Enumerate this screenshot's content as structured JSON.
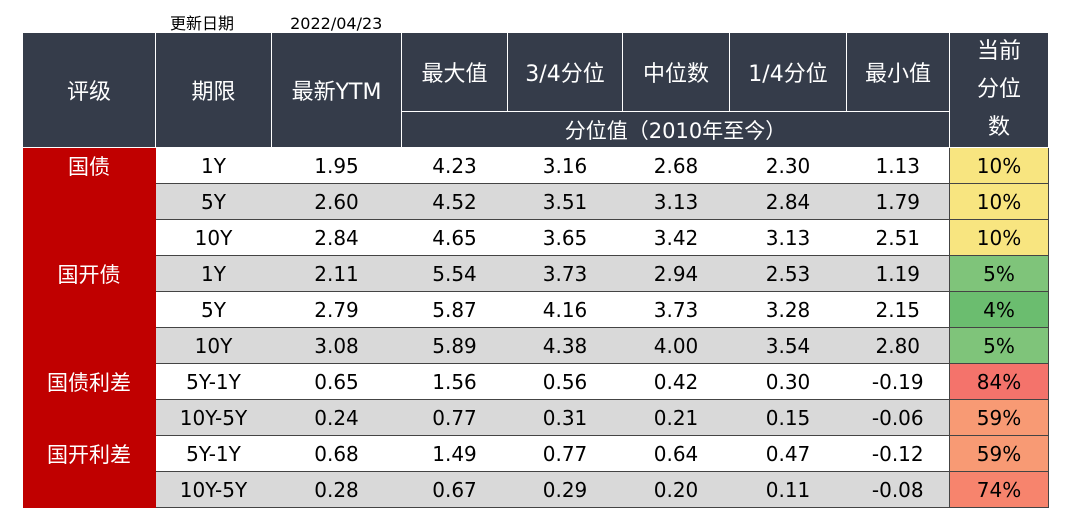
{
  "update": {
    "label": "更新日期",
    "date": "2022/04/23"
  },
  "headers": {
    "grade": "评级",
    "term": "期限",
    "ytm": "最新YTM",
    "max": "最大值",
    "q3": "3/4分位",
    "median": "中位数",
    "q1": "1/4分位",
    "min": "最小值",
    "pct": "当前分位数",
    "subheader": "分位值（2010年至今）"
  },
  "rows": [
    {
      "grade": "国债",
      "term": "1Y",
      "ytm": "1.95",
      "max": "4.23",
      "q3": "3.16",
      "median": "2.68",
      "q1": "2.30",
      "min": "1.13",
      "pct": "10%"
    },
    {
      "grade": "",
      "term": "5Y",
      "ytm": "2.60",
      "max": "4.52",
      "q3": "3.51",
      "median": "3.13",
      "q1": "2.84",
      "min": "1.79",
      "pct": "10%"
    },
    {
      "grade": "",
      "term": "10Y",
      "ytm": "2.84",
      "max": "4.65",
      "q3": "3.65",
      "median": "3.42",
      "q1": "3.13",
      "min": "2.51",
      "pct": "10%"
    },
    {
      "grade": "国开债",
      "term": "1Y",
      "ytm": "2.11",
      "max": "5.54",
      "q3": "3.73",
      "median": "2.94",
      "q1": "2.53",
      "min": "1.19",
      "pct": "5%"
    },
    {
      "grade": "",
      "term": "5Y",
      "ytm": "2.79",
      "max": "5.87",
      "q3": "4.16",
      "median": "3.73",
      "q1": "3.28",
      "min": "2.15",
      "pct": "4%"
    },
    {
      "grade": "",
      "term": "10Y",
      "ytm": "3.08",
      "max": "5.89",
      "q3": "4.38",
      "median": "4.00",
      "q1": "3.54",
      "min": "2.80",
      "pct": "5%"
    },
    {
      "grade": "国债利差",
      "term": "5Y-1Y",
      "ytm": "0.65",
      "max": "1.56",
      "q3": "0.56",
      "median": "0.42",
      "q1": "0.30",
      "min": "-0.19",
      "pct": "84%"
    },
    {
      "grade": "",
      "term": "10Y-5Y",
      "ytm": "0.24",
      "max": "0.77",
      "q3": "0.31",
      "median": "0.21",
      "q1": "0.15",
      "min": "-0.06",
      "pct": "59%"
    },
    {
      "grade": "国开利差",
      "term": "5Y-1Y",
      "ytm": "0.68",
      "max": "1.49",
      "q3": "0.77",
      "median": "0.64",
      "q1": "0.47",
      "min": "-0.12",
      "pct": "59%"
    },
    {
      "grade": "",
      "term": "10Y-5Y",
      "ytm": "0.28",
      "max": "0.67",
      "q3": "0.29",
      "median": "0.20",
      "q1": "0.11",
      "min": "-0.08",
      "pct": "74%"
    }
  ],
  "colors": {
    "header_bg": "#353c4a",
    "grade_bg": "#c00000",
    "alt_row_bg": "#d9d9d9",
    "pct_yellow": "#f8e580",
    "pct_green": "#7fc47a",
    "pct_red": "#f4736b",
    "pct_orange": "#f8906f"
  }
}
